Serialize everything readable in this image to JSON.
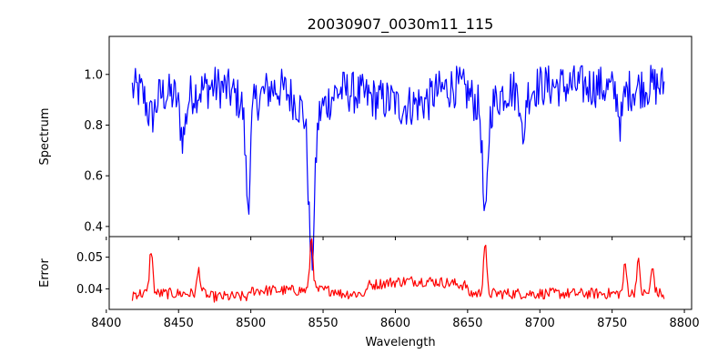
{
  "title": "20030907_0030m11_115",
  "chart_data": [
    {
      "type": "line",
      "panel": "top",
      "title": "20030907_0030m11_115",
      "ylabel": "Spectrum",
      "xlabel": "",
      "xlim": [
        8402,
        8805
      ],
      "ylim": [
        0.36,
        1.15
      ],
      "xticks": [
        8400,
        8450,
        8500,
        8550,
        8600,
        8650,
        8700,
        8750,
        8800
      ],
      "yticks": [
        0.4,
        0.6,
        0.8,
        1.0
      ],
      "ytick_labels": [
        "0.4",
        "0.6",
        "0.8",
        "1.0"
      ],
      "grid": false,
      "series": [
        {
          "color": "#0000ff",
          "x_start": 8418,
          "x_end": 8786,
          "features": [
            {
              "center": 8431,
              "depth": 0.1,
              "width": 3
            },
            {
              "center": 8453,
              "depth": 0.16,
              "width": 2
            },
            {
              "center": 8498.0,
              "depth": 0.38,
              "width": 1.6
            },
            {
              "center": 8542.1,
              "depth": 0.58,
              "width": 2.0
            },
            {
              "center": 8662.1,
              "depth": 0.46,
              "width": 1.6
            },
            {
              "center": 8688.5,
              "depth": 0.24,
              "width": 0.8
            },
            {
              "center": 8756,
              "depth": 0.12,
              "width": 1.5
            }
          ]
        }
      ]
    },
    {
      "type": "line",
      "panel": "bottom",
      "title": "",
      "ylabel": "Error",
      "xlabel": "Wavelength",
      "xlim": [
        8402,
        8805
      ],
      "ylim": [
        0.0335,
        0.0565
      ],
      "xticks": [
        8400,
        8450,
        8500,
        8550,
        8600,
        8650,
        8700,
        8750,
        8800
      ],
      "xtick_labels": [
        "8400",
        "8450",
        "8500",
        "8550",
        "8600",
        "8650",
        "8700",
        "8750",
        "8800"
      ],
      "yticks": [
        0.04,
        0.05
      ],
      "ytick_labels": [
        "0.04",
        "0.05"
      ],
      "grid": false,
      "series": [
        {
          "color": "#ff0000",
          "x_start": 8418,
          "x_end": 8786,
          "peaks": [
            {
              "center": 8431,
              "height": 0.0525
            },
            {
              "center": 8464,
              "height": 0.046
            },
            {
              "center": 8542,
              "height": 0.0562
            },
            {
              "center": 8662,
              "height": 0.0542
            },
            {
              "center": 8759,
              "height": 0.0475
            },
            {
              "center": 8768,
              "height": 0.0488
            },
            {
              "center": 8778,
              "height": 0.0465
            }
          ]
        }
      ]
    }
  ]
}
